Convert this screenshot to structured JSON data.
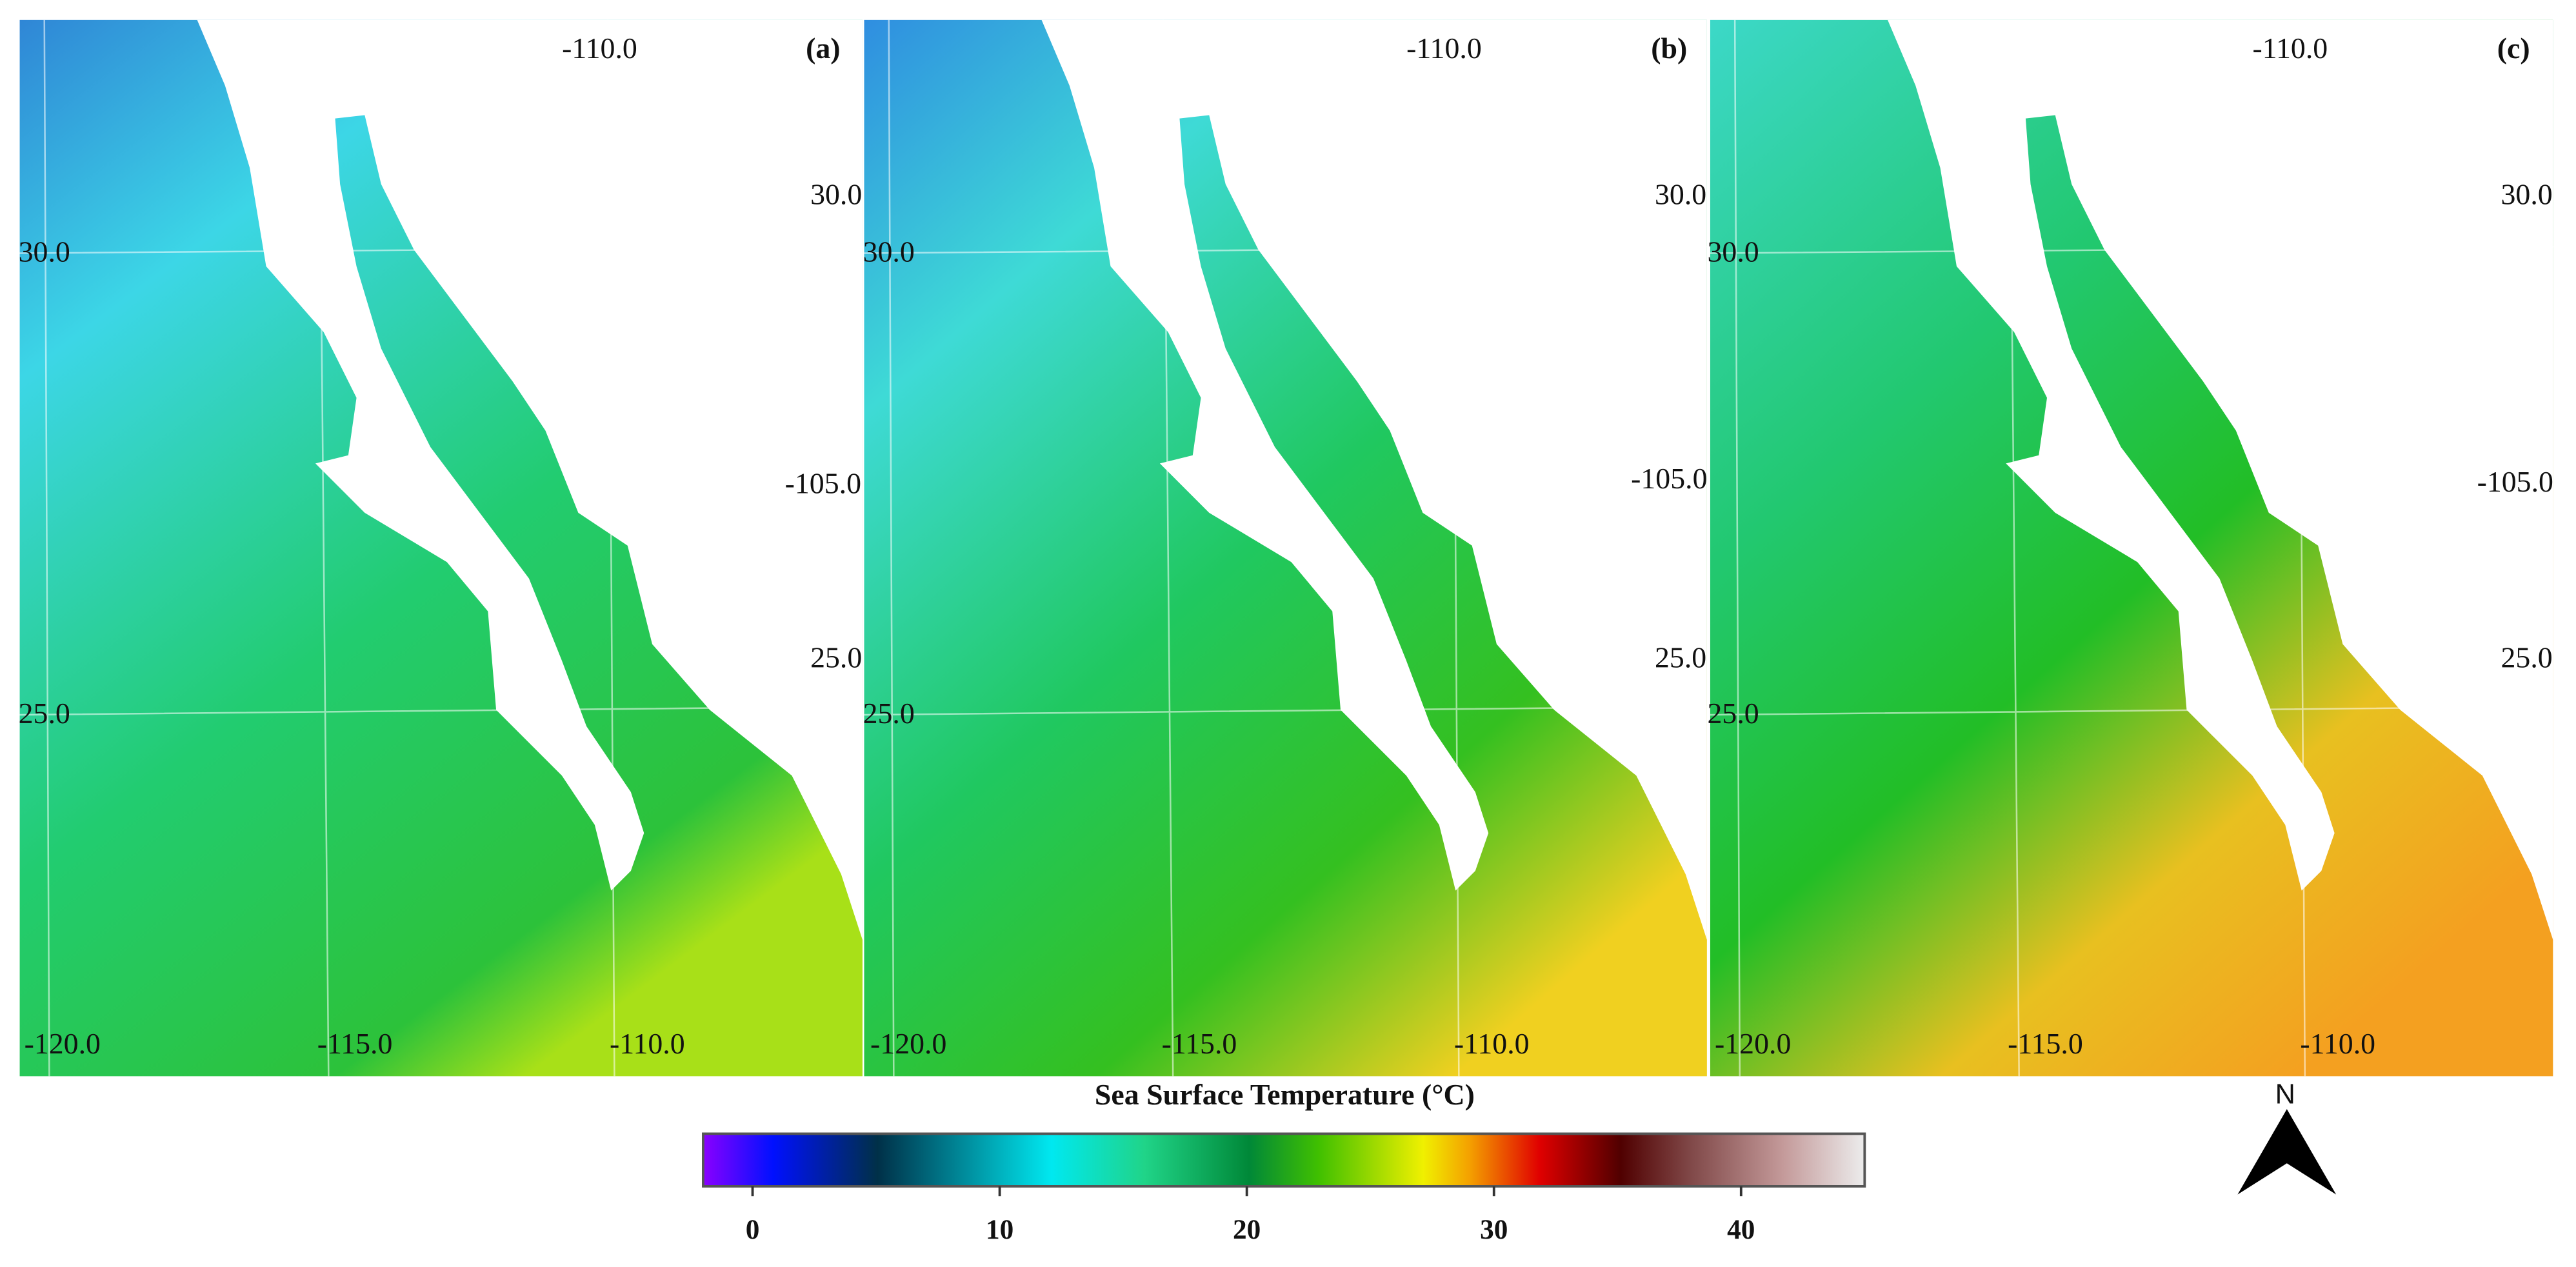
{
  "panels": [
    {
      "label": "(a)",
      "grid_labels": [
        "-110.0",
        "30.0",
        "25.0",
        "-120.0",
        "-115.0",
        "-110.0"
      ]
    },
    {
      "label": "(b)",
      "grid_labels": [
        "-110.0",
        "30.0",
        "-105.0",
        "25.0",
        "30.0",
        "25.0",
        "-120.0",
        "-115.0",
        "-110.0"
      ]
    },
    {
      "label": "(c)",
      "grid_labels": [
        "-110.0",
        "30.0",
        "-105.0",
        "25.0",
        "30.0",
        "25.0",
        "-120.0",
        "-115.0",
        "-110.0",
        "30.0",
        "-105.0",
        "25.0"
      ]
    }
  ],
  "colorbar": {
    "title": "Sea Surface Temperature (°C)",
    "range": [
      -2,
      45
    ],
    "ticks": [
      0,
      10,
      20,
      30,
      40
    ]
  },
  "north_arrow": {
    "label": "N"
  }
}
